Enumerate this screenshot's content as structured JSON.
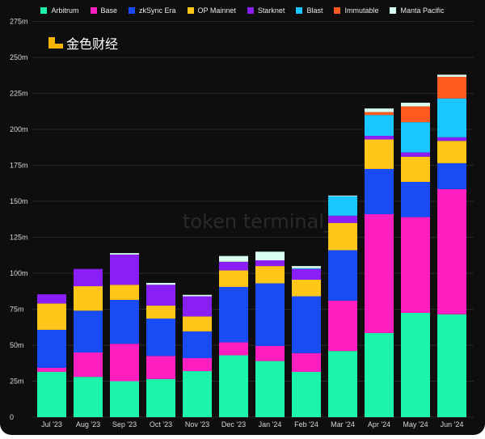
{
  "chart_data": {
    "type": "bar",
    "stacked": true,
    "title": "",
    "xlabel": "",
    "ylabel": "",
    "ylim": [
      0,
      275
    ],
    "yticks": [
      "0",
      "25m",
      "50m",
      "75m",
      "100m",
      "125m",
      "150m",
      "175m",
      "200m",
      "225m",
      "250m",
      "275m"
    ],
    "grid": true,
    "legend_position": "top",
    "categories": [
      "Jul '23",
      "Aug '23",
      "Sep '23",
      "Oct '23",
      "Nov '23",
      "Dec '23",
      "Jan '24",
      "Feb '24",
      "Mar '24",
      "Apr '24",
      "May '24",
      "Jun '24"
    ],
    "series": [
      {
        "name": "Arbitrum",
        "color": "#1cf5a9",
        "values": [
          31.5,
          28,
          25,
          26.5,
          32,
          43,
          39,
          31.5,
          46,
          58.5,
          72.5,
          71.5
        ]
      },
      {
        "name": "Base",
        "color": "#ff1fc1",
        "values": [
          2.8,
          17,
          26,
          16,
          9,
          9,
          10.5,
          13,
          35,
          82.5,
          66.5,
          87
        ]
      },
      {
        "name": "zkSync Era",
        "color": "#1a4cf5",
        "values": [
          26.4,
          29,
          30.5,
          26,
          18.6,
          38.5,
          43.5,
          39.5,
          35,
          31.5,
          24.5,
          18
        ]
      },
      {
        "name": "OP Mainnet",
        "color": "#ffc61a",
        "values": [
          18.3,
          17,
          10.5,
          9,
          10.4,
          11.5,
          12,
          11.5,
          19,
          20.5,
          17.5,
          15.5
        ]
      },
      {
        "name": "Starknet",
        "color": "#8a1ff5",
        "values": [
          6.4,
          12,
          21,
          14.5,
          14,
          6,
          4,
          7.5,
          5,
          2.5,
          3,
          2.5
        ]
      },
      {
        "name": "Blast",
        "color": "#1ac6ff",
        "values": [
          0,
          0,
          0,
          0,
          0,
          0,
          0,
          0.5,
          13.5,
          14.5,
          21,
          27
        ]
      },
      {
        "name": "Immutable",
        "color": "#ff5a1f",
        "values": [
          0,
          0,
          0,
          0,
          0,
          0,
          0,
          0,
          0,
          2,
          11,
          15
        ]
      },
      {
        "name": "Manta Pacific",
        "color": "#d9fff0",
        "values": [
          0,
          0,
          1,
          1.3,
          1,
          4,
          6,
          1.5,
          0.5,
          2.5,
          2.5,
          1.5
        ]
      }
    ],
    "watermarks": [
      "token terminal_",
      "金色财经"
    ]
  }
}
